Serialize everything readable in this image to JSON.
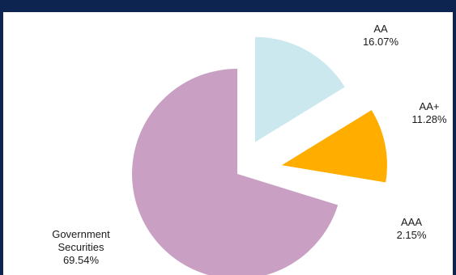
{
  "chart_data": {
    "type": "pie",
    "title": "",
    "slices": [
      {
        "label": "AA",
        "value": 16.07,
        "value_label": "16.07%",
        "color": "#cce8ef",
        "exploded": true
      },
      {
        "label": "AA+",
        "value": 11.28,
        "value_label": "11.28%",
        "color": "#ffae00",
        "exploded": true
      },
      {
        "label": "AAA",
        "value": 2.15,
        "value_label": "2.15%",
        "color": "#ffffff",
        "exploded": false
      },
      {
        "label": "Government Securities",
        "label_lines": [
          "Government",
          "Securities"
        ],
        "value": 69.54,
        "value_label": "69.54%",
        "color": "#c9a0c4",
        "exploded": false
      }
    ],
    "start_angle": "12 o'clock",
    "direction": "clockwise",
    "legend": "none"
  },
  "colors": {
    "frame_border": "#0d2350",
    "background": "#ffffff"
  }
}
